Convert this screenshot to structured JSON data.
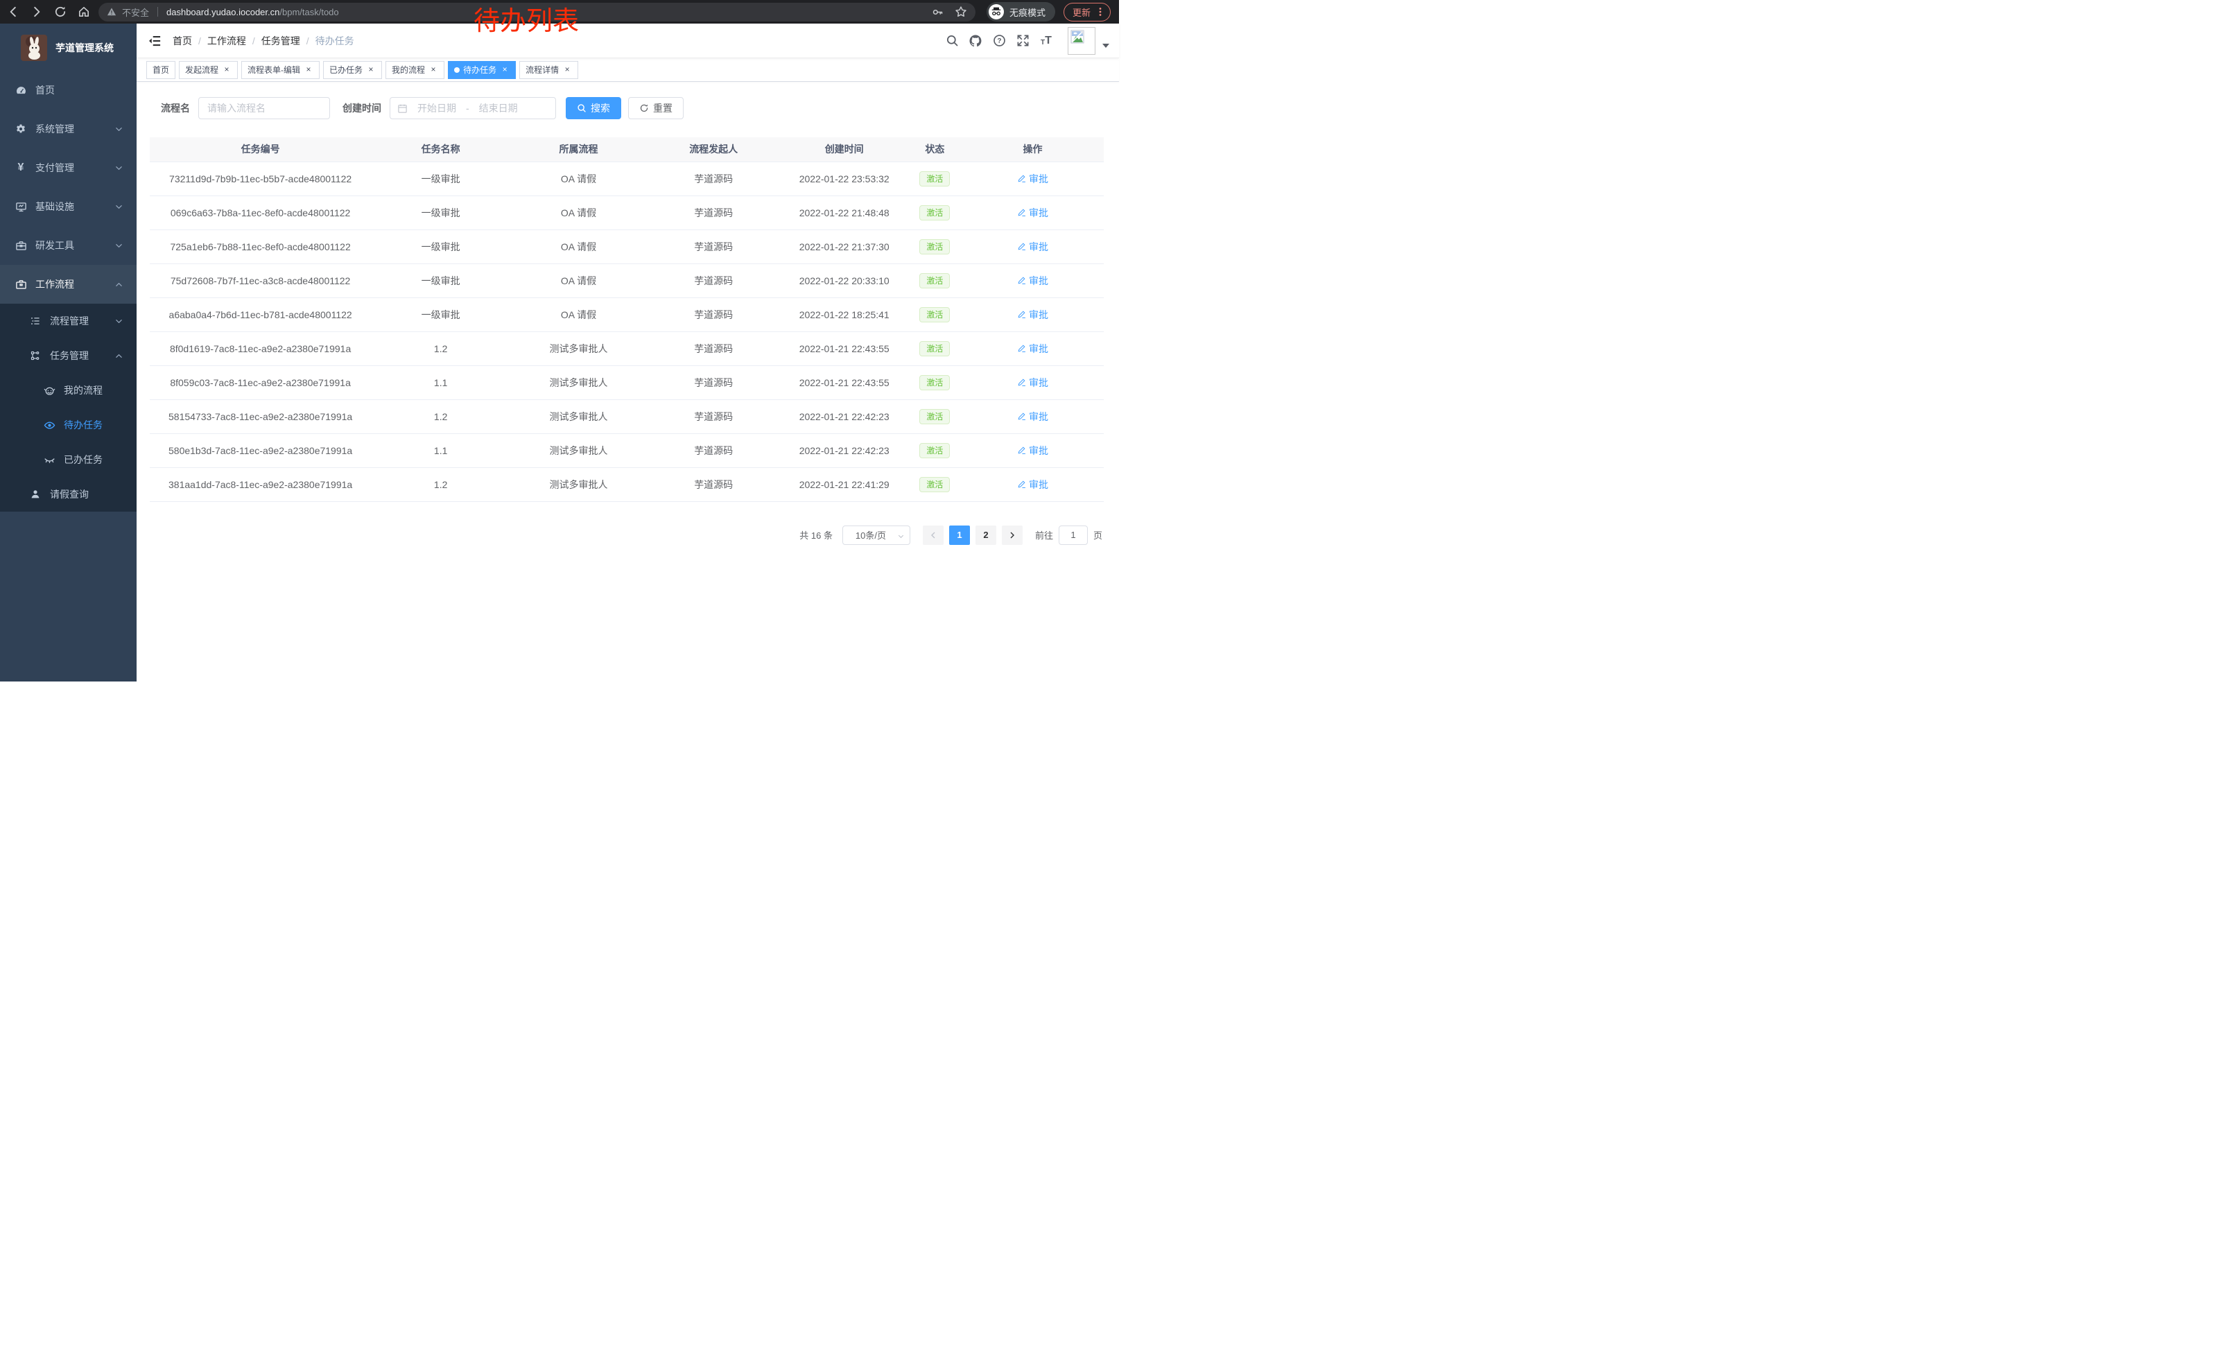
{
  "annotation": {
    "text": "待办列表"
  },
  "colors": {
    "accent": "#409eff",
    "success": "#67c23a",
    "sidebar_bg": "#304156",
    "submenu_bg": "#1f2d3d",
    "annotation_red": "#f92c08",
    "chrome_update_red": "#f28b82"
  },
  "browser": {
    "security_label": "不安全",
    "url_host": "dashboard.yudao.iocoder.cn",
    "url_path": "/bpm/task/todo",
    "incognito_label": "无痕模式",
    "update_label": "更新"
  },
  "sidebar": {
    "title": "芋道管理系统",
    "menu": [
      {
        "label": "首页",
        "icon": "dashboard-icon",
        "level": 1
      },
      {
        "label": "系统管理",
        "icon": "gear-icon",
        "level": 1,
        "chevron": "down"
      },
      {
        "label": "支付管理",
        "icon": "yen-icon",
        "level": 1,
        "chevron": "down"
      },
      {
        "label": "基础设施",
        "icon": "monitor-icon",
        "level": 1,
        "chevron": "down"
      },
      {
        "label": "研发工具",
        "icon": "toolbox-icon",
        "level": 1,
        "chevron": "down"
      },
      {
        "label": "工作流程",
        "icon": "briefcase-icon",
        "level": 1,
        "chevron": "up",
        "opened": true
      },
      {
        "label": "流程管理",
        "icon": "list-icon",
        "level": 2,
        "chevron": "down",
        "sub": true
      },
      {
        "label": "任务管理",
        "icon": "tree-icon",
        "level": 2,
        "chevron": "up",
        "sub": true
      },
      {
        "label": "我的流程",
        "icon": "robot-icon",
        "level": 3,
        "sub": true
      },
      {
        "label": "待办任务",
        "icon": "eye-icon",
        "level": 3,
        "sub": true,
        "active": true
      },
      {
        "label": "已办任务",
        "icon": "eye-closed-icon",
        "level": 3,
        "sub": true
      },
      {
        "label": "请假查询",
        "icon": "user-icon",
        "level": 2,
        "sub": true
      }
    ]
  },
  "navbar": {
    "breadcrumb": [
      "首页",
      "工作流程",
      "任务管理",
      "待办任务"
    ]
  },
  "tabs": [
    {
      "label": "首页"
    },
    {
      "label": "发起流程",
      "closable": true
    },
    {
      "label": "流程表单-编辑",
      "closable": true
    },
    {
      "label": "已办任务",
      "closable": true
    },
    {
      "label": "我的流程",
      "closable": true
    },
    {
      "label": "待办任务",
      "closable": true,
      "active": true
    },
    {
      "label": "流程详情",
      "closable": true
    }
  ],
  "filters": {
    "name_label": "流程名",
    "name_placeholder": "请输入流程名",
    "time_label": "创建时间",
    "start_placeholder": "开始日期",
    "range_separator": "-",
    "end_placeholder": "结束日期",
    "search_label": "搜索",
    "reset_label": "重置"
  },
  "table": {
    "headers": [
      "任务编号",
      "任务名称",
      "所属流程",
      "流程发起人",
      "创建时间",
      "状态",
      "操作"
    ],
    "rows": [
      {
        "id": "73211d9d-7b9b-11ec-b5b7-acde48001122",
        "name": "一级审批",
        "process": "OA 请假",
        "initiator": "芋道源码",
        "created": "2022-01-22 23:53:32",
        "status": "激活",
        "action": "审批"
      },
      {
        "id": "069c6a63-7b8a-11ec-8ef0-acde48001122",
        "name": "一级审批",
        "process": "OA 请假",
        "initiator": "芋道源码",
        "created": "2022-01-22 21:48:48",
        "status": "激活",
        "action": "审批"
      },
      {
        "id": "725a1eb6-7b88-11ec-8ef0-acde48001122",
        "name": "一级审批",
        "process": "OA 请假",
        "initiator": "芋道源码",
        "created": "2022-01-22 21:37:30",
        "status": "激活",
        "action": "审批"
      },
      {
        "id": "75d72608-7b7f-11ec-a3c8-acde48001122",
        "name": "一级审批",
        "process": "OA 请假",
        "initiator": "芋道源码",
        "created": "2022-01-22 20:33:10",
        "status": "激活",
        "action": "审批"
      },
      {
        "id": "a6aba0a4-7b6d-11ec-b781-acde48001122",
        "name": "一级审批",
        "process": "OA 请假",
        "initiator": "芋道源码",
        "created": "2022-01-22 18:25:41",
        "status": "激活",
        "action": "审批"
      },
      {
        "id": "8f0d1619-7ac8-11ec-a9e2-a2380e71991a",
        "name": "1.2",
        "process": "测试多审批人",
        "initiator": "芋道源码",
        "created": "2022-01-21 22:43:55",
        "status": "激活",
        "action": "审批"
      },
      {
        "id": "8f059c03-7ac8-11ec-a9e2-a2380e71991a",
        "name": "1.1",
        "process": "测试多审批人",
        "initiator": "芋道源码",
        "created": "2022-01-21 22:43:55",
        "status": "激活",
        "action": "审批"
      },
      {
        "id": "58154733-7ac8-11ec-a9e2-a2380e71991a",
        "name": "1.2",
        "process": "测试多审批人",
        "initiator": "芋道源码",
        "created": "2022-01-21 22:42:23",
        "status": "激活",
        "action": "审批"
      },
      {
        "id": "580e1b3d-7ac8-11ec-a9e2-a2380e71991a",
        "name": "1.1",
        "process": "测试多审批人",
        "initiator": "芋道源码",
        "created": "2022-01-21 22:42:23",
        "status": "激活",
        "action": "审批"
      },
      {
        "id": "381aa1dd-7ac8-11ec-a9e2-a2380e71991a",
        "name": "1.2",
        "process": "测试多审批人",
        "initiator": "芋道源码",
        "created": "2022-01-21 22:41:29",
        "status": "激活",
        "action": "审批"
      }
    ]
  },
  "pagination": {
    "total_label": "共 16 条",
    "page_size_label": "10条/页",
    "pages": [
      "1",
      "2"
    ],
    "active_page": "1",
    "goto_label": "前往",
    "goto_value": "1",
    "page_suffix": "页"
  }
}
